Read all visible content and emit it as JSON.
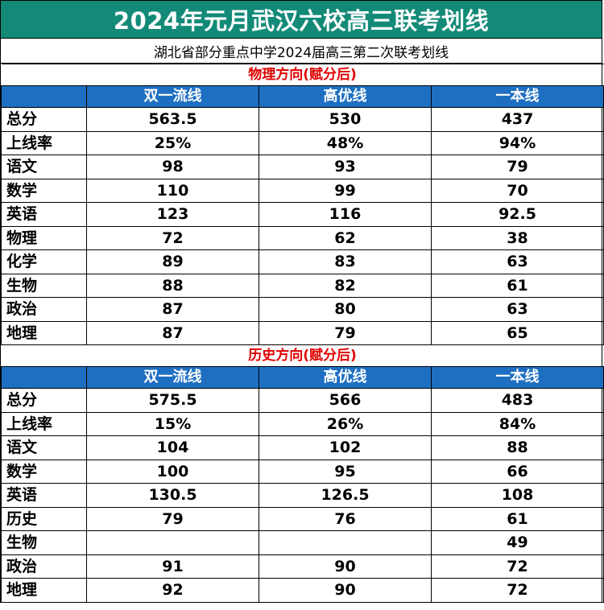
{
  "title": "2024年元月武汉六校高三联考划线",
  "subtitle": "湖北省部分重点中学2024届高三第二次联考划线",
  "colors": {
    "title_bg": "#138a78",
    "header_bg": "#1e6fc2",
    "section_text": "#e00000"
  },
  "columns": [
    "双一流线",
    "高优线",
    "一本线"
  ],
  "physics": {
    "heading": "物理方向(赋分后)",
    "rows": [
      {
        "subject": "总分",
        "values": [
          "563.5",
          "530",
          "437"
        ]
      },
      {
        "subject": "上线率",
        "values": [
          "25%",
          "48%",
          "94%"
        ]
      },
      {
        "subject": "语文",
        "values": [
          "98",
          "93",
          "79"
        ]
      },
      {
        "subject": "数学",
        "values": [
          "110",
          "99",
          "70"
        ]
      },
      {
        "subject": "英语",
        "values": [
          "123",
          "116",
          "92.5"
        ]
      },
      {
        "subject": "物理",
        "values": [
          "72",
          "62",
          "38"
        ]
      },
      {
        "subject": "化学",
        "values": [
          "89",
          "83",
          "63"
        ]
      },
      {
        "subject": "生物",
        "values": [
          "88",
          "82",
          "61"
        ]
      },
      {
        "subject": "政治",
        "values": [
          "87",
          "80",
          "63"
        ]
      },
      {
        "subject": "地理",
        "values": [
          "87",
          "79",
          "65"
        ]
      }
    ]
  },
  "history": {
    "heading": "历史方向(赋分后)",
    "rows": [
      {
        "subject": "总分",
        "values": [
          "575.5",
          "566",
          "483"
        ]
      },
      {
        "subject": "上线率",
        "values": [
          "15%",
          "26%",
          "84%"
        ]
      },
      {
        "subject": "语文",
        "values": [
          "104",
          "102",
          "88"
        ]
      },
      {
        "subject": "数学",
        "values": [
          "100",
          "95",
          "66"
        ]
      },
      {
        "subject": "英语",
        "values": [
          "130.5",
          "126.5",
          "108"
        ]
      },
      {
        "subject": "历史",
        "values": [
          "79",
          "76",
          "61"
        ]
      },
      {
        "subject": "生物",
        "values": [
          "",
          "",
          "49"
        ]
      },
      {
        "subject": "政治",
        "values": [
          "91",
          "90",
          "72"
        ]
      },
      {
        "subject": "地理",
        "values": [
          "92",
          "90",
          "72"
        ]
      }
    ]
  }
}
